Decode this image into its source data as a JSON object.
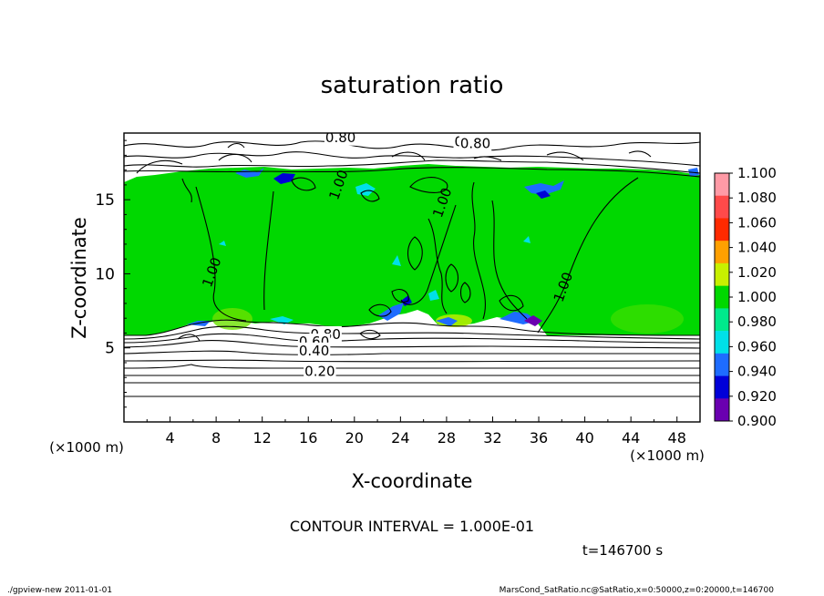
{
  "chart_data": {
    "type": "heatmap",
    "title": "saturation ratio",
    "xlabel": "X-coordinate",
    "ylabel": "Z-coordinate",
    "x_unit_left": "(×1000 m)",
    "x_unit_right": "(×1000 m)",
    "xlim": [
      0,
      50
    ],
    "ylim": [
      0,
      19.5
    ],
    "x_ticks": [
      "4",
      "8",
      "12",
      "16",
      "20",
      "24",
      "28",
      "32",
      "36",
      "40",
      "44",
      "48"
    ],
    "x_tick_values": [
      4,
      8,
      12,
      16,
      20,
      24,
      28,
      32,
      36,
      40,
      44,
      48
    ],
    "y_ticks": [
      "5",
      "10",
      "15"
    ],
    "y_tick_values": [
      5,
      10,
      15
    ],
    "colorbar": {
      "labels": [
        "1.100",
        "1.080",
        "1.060",
        "1.040",
        "1.020",
        "1.000",
        "0.980",
        "0.960",
        "0.940",
        "0.920",
        "0.900"
      ],
      "levels": [
        1.1,
        1.08,
        1.06,
        1.04,
        1.02,
        1.0,
        0.98,
        0.96,
        0.94,
        0.92,
        0.9
      ],
      "colors": [
        "#ff9aa6",
        "#ff4a4a",
        "#ff2a00",
        "#ffa000",
        "#c8f000",
        "#00d800",
        "#00e98c",
        "#00e0e8",
        "#1e6cff",
        "#0000d8",
        "#6a00b0"
      ]
    },
    "contour_labels": [
      {
        "text": "0.80",
        "x": 18.8,
        "z": 18.9
      },
      {
        "text": "0.60",
        "x": 30.0,
        "z": 18.6
      },
      {
        "text": "0.80",
        "x": 30.5,
        "z": 18.5
      },
      {
        "text": "1.00",
        "x": 19.0,
        "z": 15.9
      },
      {
        "text": "1.00",
        "x": 28.0,
        "z": 14.7
      },
      {
        "text": "1.00",
        "x": 8.0,
        "z": 10.0
      },
      {
        "text": "1.00",
        "x": 38.5,
        "z": 9.0
      },
      {
        "text": "0.80",
        "x": 17.5,
        "z": 5.6
      },
      {
        "text": "0.60",
        "x": 16.5,
        "z": 5.1
      },
      {
        "text": "0.40",
        "x": 16.5,
        "z": 4.5
      },
      {
        "text": "0.20",
        "x": 17.0,
        "z": 3.1
      }
    ],
    "contour_interval_text": "CONTOUR INTERVAL = 1.000E-01",
    "time_text": "t=146700 s"
  },
  "footer": {
    "left": "./gpview-new   2011-01-01",
    "right": "MarsCond_SatRatio.nc@SatRatio,x=0:50000,z=0:20000,t=146700"
  }
}
